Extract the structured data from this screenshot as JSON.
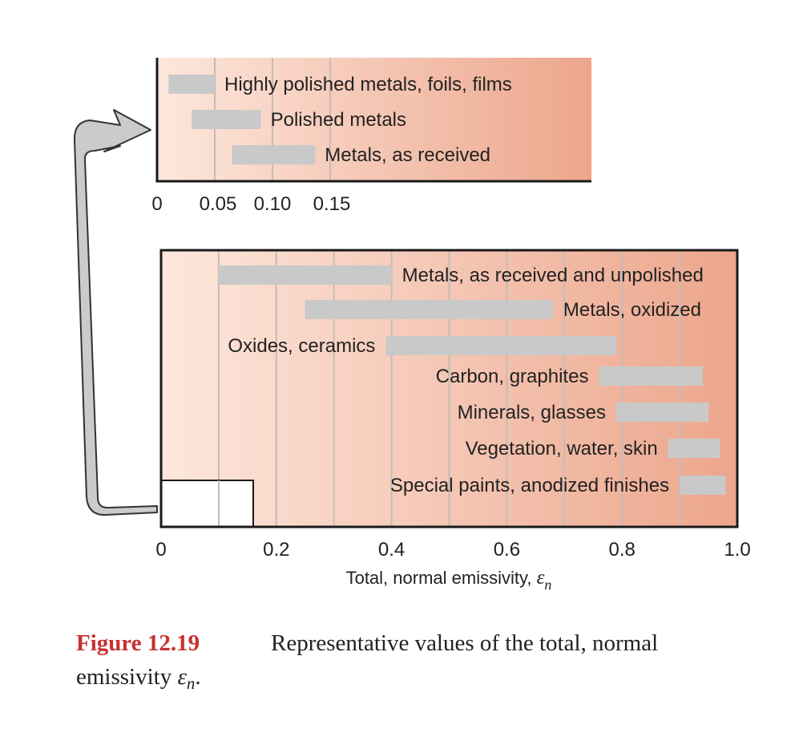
{
  "chart_data": [
    {
      "type": "bar",
      "subtype": "floating-range",
      "name": "inset",
      "xlim": [
        0,
        0.16
      ],
      "x_ticks": [
        "0",
        "0.05",
        "0.10",
        "0.15"
      ],
      "x_tick_values": [
        0,
        0.05,
        0.1,
        0.15
      ],
      "grid": "vertical",
      "bars": [
        {
          "label": "Highly polished metals, foils, films",
          "start": 0.01,
          "end": 0.05
        },
        {
          "label": "Polished metals",
          "start": 0.03,
          "end": 0.09
        },
        {
          "label": "Metals, as received",
          "start": 0.065,
          "end": 0.137
        }
      ]
    },
    {
      "type": "bar",
      "subtype": "floating-range",
      "name": "main",
      "xlim": [
        0,
        1.0
      ],
      "x_ticks": [
        "0",
        "0.2",
        "0.4",
        "0.6",
        "0.8",
        "1.0"
      ],
      "x_tick_values": [
        0,
        0.2,
        0.4,
        0.6,
        0.8,
        1.0
      ],
      "grid": "vertical",
      "xlabel": "Total, normal emissivity, ",
      "xlabel_symbol": "ε",
      "xlabel_subscript": "n",
      "bars": [
        {
          "label": "Metals, as received and unpolished",
          "start": 0.1,
          "end": 0.4,
          "label_side": "right"
        },
        {
          "label": "Metals, oxidized",
          "start": 0.25,
          "end": 0.68,
          "label_side": "right"
        },
        {
          "label": "Oxides, ceramics",
          "start": 0.39,
          "end": 0.79,
          "label_side": "left"
        },
        {
          "label": "Carbon, graphites",
          "start": 0.76,
          "end": 0.94,
          "label_side": "left"
        },
        {
          "label": "Minerals, glasses",
          "start": 0.79,
          "end": 0.95,
          "label_side": "left"
        },
        {
          "label": "Vegetation, water, skin",
          "start": 0.88,
          "end": 0.97,
          "label_side": "left"
        },
        {
          "label": "Special paints, anodized finishes",
          "start": 0.9,
          "end": 0.98,
          "label_side": "left"
        }
      ],
      "inset_region": {
        "xmax": 0.16
      }
    }
  ],
  "caption": {
    "figure_label": "Figure 12.19",
    "text_line1": "Representative values of the total, normal",
    "text_line2": "emissivity ",
    "symbol": "ε",
    "subscript": "n",
    "end": "."
  },
  "colors": {
    "gradient_start": "#fde7dc",
    "gradient_end": "#eca68c",
    "bar": "#c9c9c9",
    "grid": "#c4bcb8",
    "frame": "#1a1a1a",
    "caption_accent": "#c8312f"
  }
}
